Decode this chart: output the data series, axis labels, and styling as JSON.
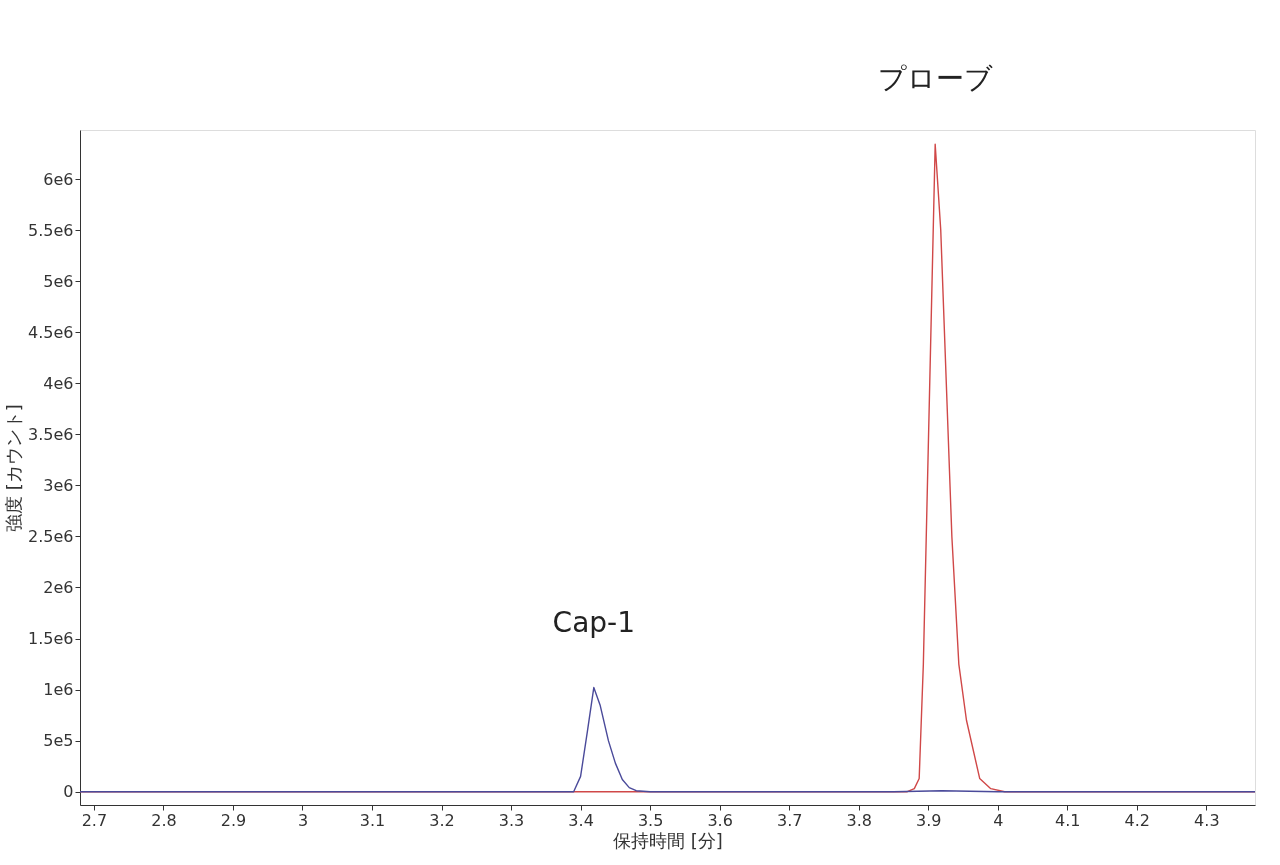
{
  "chart_data": {
    "type": "line",
    "xlabel": "保持時間 [分]",
    "ylabel": "強度 [カウント]",
    "xlim": [
      2.68,
      4.37
    ],
    "ylim": [
      -130000,
      6480000
    ],
    "xticks": [
      2.7,
      2.8,
      2.9,
      3,
      3.1,
      3.2,
      3.3,
      3.4,
      3.5,
      3.6,
      3.7,
      3.8,
      3.9,
      4,
      4.1,
      4.2,
      4.3
    ],
    "yticks": [
      0,
      {
        "value": 500000,
        "label": "5e5"
      },
      {
        "value": 1000000,
        "label": "1e6"
      },
      {
        "value": 1500000,
        "label": "1.5e6"
      },
      {
        "value": 2000000,
        "label": "2e6"
      },
      {
        "value": 2500000,
        "label": "2.5e6"
      },
      {
        "value": 3000000,
        "label": "3e6"
      },
      {
        "value": 3500000,
        "label": "3.5e6"
      },
      {
        "value": 4000000,
        "label": "4e6"
      },
      {
        "value": 4500000,
        "label": "4.5e6"
      },
      {
        "value": 5000000,
        "label": "5e6"
      },
      {
        "value": 5500000,
        "label": "5.5e6"
      },
      {
        "value": 6000000,
        "label": "6e6"
      }
    ],
    "grid": false,
    "marker": "none",
    "line_style": "solid",
    "series": [
      {
        "color": "#d04848",
        "x": [
          2.68,
          3.87,
          3.88,
          3.887,
          3.893,
          3.91,
          3.918,
          3.934,
          3.944,
          3.955,
          3.974,
          3.99,
          4.01,
          4.37
        ],
        "values": [
          0,
          0,
          30000,
          130000,
          1250000,
          6340000,
          5500000,
          2500000,
          1250000,
          700000,
          130000,
          30000,
          0,
          0
        ]
      },
      {
        "color": "#4a4a9a",
        "x": [
          2.68,
          3.39,
          3.4,
          3.41,
          3.419,
          3.428,
          3.44,
          3.45,
          3.46,
          3.47,
          3.48,
          3.5,
          3.85,
          3.92,
          4.0,
          4.37
        ],
        "values": [
          0,
          0,
          150000,
          600000,
          1020000,
          850000,
          500000,
          280000,
          120000,
          40000,
          10000,
          0,
          0,
          10000,
          0,
          0
        ]
      }
    ],
    "annotations": [
      {
        "text": "Cap-1",
        "x": 3.419,
        "y": 1020000
      },
      {
        "text": "プローブ",
        "x": 3.91,
        "y": 6340000
      }
    ]
  }
}
